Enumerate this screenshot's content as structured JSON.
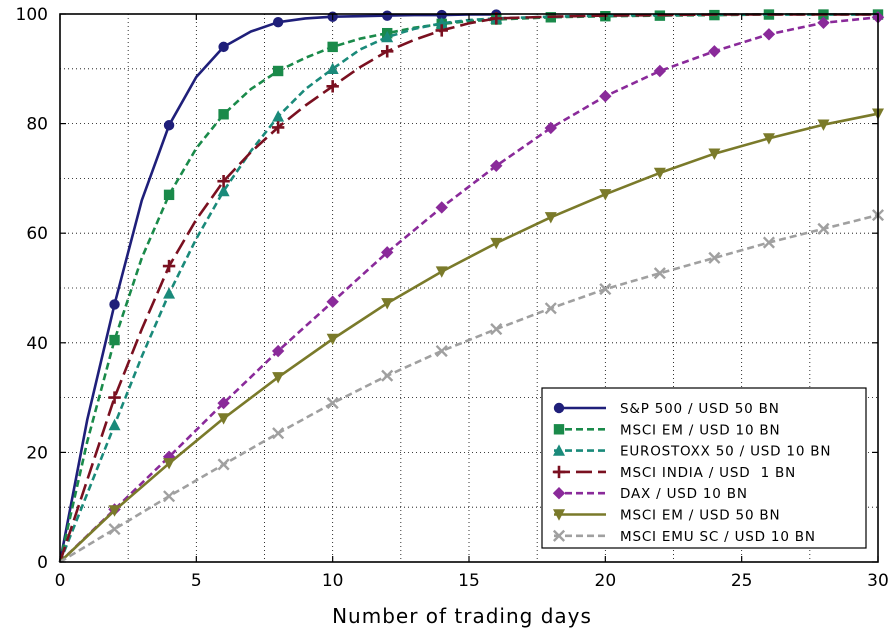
{
  "chart_data": {
    "type": "line",
    "title": "",
    "xlabel": "Number of trading days",
    "ylabel": "",
    "xlim": [
      0,
      30
    ],
    "ylim": [
      0,
      100
    ],
    "x_ticks": [
      0,
      5,
      10,
      15,
      20,
      25,
      30
    ],
    "y_ticks": [
      0,
      20,
      40,
      60,
      80,
      100
    ],
    "grid": true,
    "legend_position": "bottom-right",
    "series": [
      {
        "name": "S&P 500 / USD 50 BN",
        "color": "#1f1f7a",
        "dash": "solid",
        "marker": "circle",
        "x": [
          0,
          1,
          2,
          3,
          4,
          5,
          6,
          7,
          8,
          9,
          10,
          11,
          12,
          13,
          14,
          15,
          16
        ],
        "y": [
          0,
          26,
          47,
          66,
          79.7,
          88.5,
          94,
          96.8,
          98.5,
          99.2,
          99.5,
          99.6,
          99.7,
          99.8,
          99.8,
          99.9,
          99.9
        ],
        "marker_x": [
          2,
          4,
          6,
          8,
          10,
          12,
          14,
          16
        ],
        "marker_y": [
          47,
          79.7,
          94,
          98.5,
          99.5,
          99.7,
          99.8,
          99.9
        ]
      },
      {
        "name": "MSCI EM / USD 10 BN",
        "color": "#1a8a4a",
        "dash": "dashed",
        "marker": "square",
        "x": [
          0,
          1,
          2,
          3,
          4,
          5,
          6,
          7,
          8,
          9,
          10,
          11,
          12,
          13,
          14,
          15,
          16,
          18,
          20,
          22,
          24,
          26,
          28,
          30
        ],
        "y": [
          0,
          22,
          40.5,
          55.5,
          67,
          75.5,
          81.7,
          86.3,
          89.6,
          92,
          94,
          95.5,
          96.5,
          97.5,
          98.2,
          98.7,
          99,
          99.4,
          99.6,
          99.7,
          99.8,
          99.9,
          99.9,
          99.9
        ],
        "marker_x": [
          2,
          4,
          6,
          8,
          10,
          12,
          14,
          16,
          18,
          20,
          22,
          24,
          26,
          28,
          30
        ],
        "marker_y": [
          40.5,
          67,
          81.7,
          89.6,
          94,
          96.5,
          98.2,
          99,
          99.4,
          99.6,
          99.7,
          99.8,
          99.9,
          99.9,
          99.9
        ]
      },
      {
        "name": "EUROSTOXX 50 / USD 10 BN",
        "color": "#1a8a7a",
        "dash": "dashed",
        "marker": "triangle",
        "x": [
          0,
          1,
          2,
          3,
          4,
          5,
          6,
          7,
          8,
          9,
          10,
          11,
          12,
          13,
          14,
          15,
          16,
          18,
          20,
          22,
          24,
          26,
          28,
          30
        ],
        "y": [
          0,
          12.5,
          25,
          37.5,
          49,
          59,
          67.7,
          75,
          81.3,
          86.3,
          90,
          93.5,
          95.8,
          97.3,
          98.3,
          98.9,
          99.2,
          99.5,
          99.7,
          99.8,
          99.9,
          99.9,
          99.9,
          99.9
        ],
        "marker_x": [
          2,
          4,
          6,
          8,
          10,
          12,
          14,
          16
        ],
        "marker_y": [
          25,
          49,
          67.7,
          81.3,
          90,
          95.8,
          98.3,
          99.2
        ]
      },
      {
        "name": "MSCI INDIA / USD  1 BN",
        "color": "#7a1020",
        "dash": "longdash",
        "marker": "plus",
        "x": [
          0,
          1,
          2,
          3,
          4,
          5,
          6,
          7,
          8,
          9,
          10,
          11,
          12,
          13,
          14,
          15,
          16,
          18,
          20,
          22,
          24,
          26,
          28,
          30
        ],
        "y": [
          0,
          15,
          30,
          42.5,
          54,
          62.5,
          69.5,
          74.8,
          79.3,
          83.3,
          86.8,
          90.3,
          93.2,
          95.3,
          97,
          98.3,
          99.2,
          99.5,
          99.7,
          99.8,
          99.9,
          99.9,
          99.9,
          99.9
        ],
        "marker_x": [
          2,
          4,
          6,
          8,
          10,
          12,
          14,
          16
        ],
        "marker_y": [
          30,
          54,
          69.5,
          79.3,
          86.8,
          93.2,
          97,
          99.2
        ]
      },
      {
        "name": "DAX / USD 10 BN",
        "color": "#8a2a9a",
        "dash": "dashed",
        "marker": "diamond",
        "x": [
          0,
          2,
          4,
          6,
          8,
          10,
          12,
          14,
          16,
          18,
          20,
          22,
          24,
          26,
          28,
          30
        ],
        "y": [
          0,
          9.6,
          19.2,
          29,
          38.5,
          47.5,
          56.5,
          64.7,
          72.3,
          79.2,
          85,
          89.6,
          93.2,
          96.3,
          98.4,
          99.4
        ],
        "marker_x": [
          2,
          4,
          6,
          8,
          10,
          12,
          14,
          16,
          18,
          20,
          22,
          24,
          26,
          28,
          30
        ],
        "marker_y": [
          9.6,
          19.2,
          29,
          38.5,
          47.5,
          56.5,
          64.7,
          72.3,
          79.2,
          85,
          89.6,
          93.2,
          96.3,
          98.4,
          99.4
        ]
      },
      {
        "name": "MSCI EM / USD 50 BN",
        "color": "#7a7a2a",
        "dash": "solid",
        "marker": "triangle-down",
        "x": [
          0,
          2,
          4,
          6,
          8,
          10,
          12,
          14,
          16,
          18,
          20,
          22,
          24,
          26,
          28,
          30
        ],
        "y": [
          0,
          9.4,
          18,
          26.2,
          33.7,
          40.7,
          47.2,
          53,
          58.2,
          62.9,
          67.1,
          71,
          74.5,
          77.3,
          79.8,
          81.8
        ],
        "marker_x": [
          2,
          4,
          6,
          8,
          10,
          12,
          14,
          16,
          18,
          20,
          22,
          24,
          26,
          28,
          30
        ],
        "marker_y": [
          9.4,
          18,
          26.2,
          33.7,
          40.7,
          47.2,
          53,
          58.2,
          62.9,
          67.1,
          71,
          74.5,
          77.3,
          79.8,
          81.8
        ]
      },
      {
        "name": "MSCI EMU SC / USD 10 BN",
        "color": "#a0a0a0",
        "dash": "dashed",
        "marker": "x",
        "x": [
          0,
          2,
          4,
          6,
          8,
          10,
          12,
          14,
          16,
          18,
          20,
          22,
          24,
          26,
          28,
          30
        ],
        "y": [
          0,
          6,
          12,
          17.8,
          23.5,
          29,
          34,
          38.5,
          42.5,
          46.3,
          49.8,
          52.7,
          55.5,
          58.3,
          60.8,
          63.3
        ],
        "marker_x": [
          2,
          4,
          6,
          8,
          10,
          12,
          14,
          16,
          18,
          20,
          22,
          24,
          26,
          28,
          30
        ],
        "marker_y": [
          6,
          12,
          17.8,
          23.5,
          29,
          34,
          38.5,
          42.5,
          46.3,
          49.8,
          52.7,
          55.5,
          58.3,
          60.8,
          63.3
        ]
      }
    ]
  }
}
